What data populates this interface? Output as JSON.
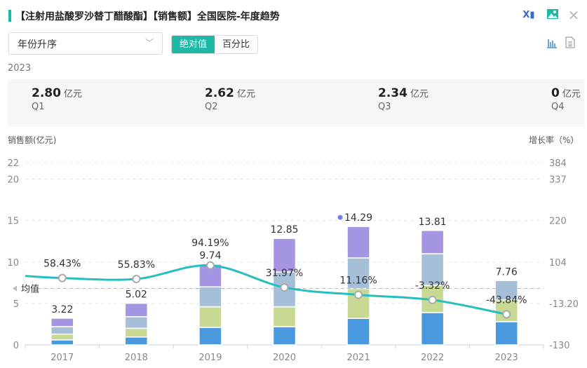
{
  "header": {
    "title": "【注射用盐酸罗沙替丁醋酸酯】【销售额】全国医院-年度趋势",
    "icons": [
      "excel-export-icon",
      "image-export-icon",
      "close-icon"
    ]
  },
  "controls": {
    "sort_select": "年份升序",
    "toggle": [
      {
        "label": "绝对值",
        "active": true
      },
      {
        "label": "百分比",
        "active": false
      }
    ],
    "view_icons": [
      "bar-chart-icon",
      "document-icon"
    ]
  },
  "summary": {
    "year": "2023",
    "cards": [
      {
        "value": "2.80",
        "unit": "亿元",
        "label": "Q1"
      },
      {
        "value": "2.62",
        "unit": "亿元",
        "label": "Q2"
      },
      {
        "value": "2.34",
        "unit": "亿元",
        "label": "Q3"
      },
      {
        "value": "0",
        "unit": "亿元",
        "label": "Q4"
      }
    ]
  },
  "chart_data": {
    "type": "bar",
    "stacked": true,
    "ylabel": "销售额(亿元)",
    "y2label": "增长率（%）",
    "categories": [
      "2017",
      "2018",
      "2019",
      "2020",
      "2021",
      "2022",
      "2023"
    ],
    "yticks": [
      "0",
      "5",
      "10",
      "15",
      "20",
      "22"
    ],
    "y2ticks": [
      "-130",
      "-13.20",
      "104",
      "220",
      "337",
      "384"
    ],
    "ylim": [
      0,
      22
    ],
    "y2lim": [
      -130,
      384
    ],
    "colors": {
      "Q1": "#4a98de",
      "Q2": "#c8d993",
      "Q3": "#a6bfd9",
      "Q4": "#a595e2",
      "line": "#26bfbf"
    },
    "series": [
      {
        "values": [
          0.6,
          0.95,
          2.1,
          2.2,
          3.2,
          3.9,
          2.8
        ]
      },
      {
        "values": [
          0.7,
          1.05,
          2.5,
          2.4,
          3.6,
          3.3,
          2.62
        ]
      },
      {
        "values": [
          0.9,
          1.4,
          2.4,
          4.2,
          3.7,
          3.8,
          2.34
        ]
      },
      {
        "values": [
          1.02,
          1.62,
          2.74,
          4.05,
          3.79,
          2.81,
          0
        ]
      }
    ],
    "totals": [
      "3.22",
      "5.02",
      "9.74",
      "12.85",
      "14.29",
      "13.81",
      "7.76"
    ],
    "growth": {
      "values": [
        58.43,
        55.83,
        94.19,
        31.97,
        11.16,
        -3.32,
        -43.84
      ],
      "labels": [
        "58.43%",
        "55.83%",
        "94.19%",
        "31.97%",
        "11.16%",
        "-3.32%",
        "-43.84%"
      ]
    },
    "mean_line": {
      "label": "均值",
      "value": 29.2
    },
    "grid": true
  }
}
